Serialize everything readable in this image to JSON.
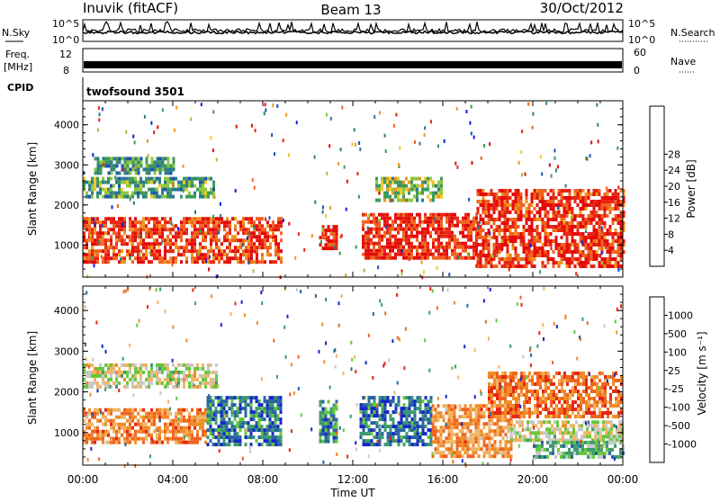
{
  "header": {
    "station": "Inuvik (fitACF)",
    "beam": "Beam 13",
    "date": "30/Oct/2012"
  },
  "strips": {
    "nsky_label": "N.Sky",
    "nsearch_label": "N.Search",
    "freq_label_1": "Freq.",
    "freq_label_2": "[MHz]",
    "nave_label": "Nave",
    "cpid_label": "CPID",
    "cpid_value": "twofsound 3501",
    "nsky_ticks": [
      "10^5",
      "10^0"
    ],
    "nsearch_ticks": [
      "10^5",
      "10^0"
    ],
    "freq_ticks": [
      "12",
      "8"
    ],
    "nave_ticks": [
      "60",
      "0"
    ]
  },
  "chart_data": [
    {
      "type": "heatmap",
      "panel": "power",
      "ylabel": "Slant Range [km]",
      "xlabel": "Time UT",
      "x_ticks": [
        "00:00",
        "04:00",
        "08:00",
        "12:00",
        "16:00",
        "20:00",
        "00:00"
      ],
      "y_ticks": [
        "1000",
        "2000",
        "3000",
        "4000"
      ],
      "ylim": [
        200,
        4600
      ],
      "xlim_hours": [
        0,
        24
      ],
      "colorbar": {
        "label": "Power [dB]",
        "ticks": [
          "4",
          "8",
          "12",
          "16",
          "20",
          "24",
          "28"
        ],
        "colors": [
          "#0a1ee6",
          "#1e50b4",
          "#2e7a8a",
          "#3c9a5a",
          "#8cc83c",
          "#f0c828",
          "#f0961e",
          "#f0641e",
          "#e62814",
          "#e60a0a"
        ]
      },
      "bands": [
        {
          "t0": 0.0,
          "t1": 8.8,
          "r0": 600,
          "r1": 1700,
          "level": 0.82
        },
        {
          "t0": 0.0,
          "t1": 5.8,
          "r0": 2200,
          "r1": 2700,
          "level": 0.35
        },
        {
          "t0": 10.5,
          "t1": 11.3,
          "r0": 900,
          "r1": 1500,
          "level": 0.9
        },
        {
          "t0": 12.4,
          "t1": 17.5,
          "r0": 700,
          "r1": 1800,
          "level": 0.88
        },
        {
          "t0": 17.5,
          "t1": 24.0,
          "r0": 500,
          "r1": 2400,
          "level": 0.85
        },
        {
          "t0": 13.0,
          "t1": 16.0,
          "r0": 2100,
          "r1": 2700,
          "level": 0.45
        },
        {
          "t0": 0.5,
          "t1": 4.0,
          "r0": 2800,
          "r1": 3200,
          "level": 0.3
        }
      ]
    },
    {
      "type": "heatmap",
      "panel": "velocity",
      "ylabel": "Slant Range [km]",
      "xlabel": "Time UT",
      "x_ticks": [
        "00:00",
        "04:00",
        "08:00",
        "12:00",
        "16:00",
        "20:00",
        "00:00"
      ],
      "y_ticks": [
        "1000",
        "2000",
        "3000",
        "4000"
      ],
      "ylim": [
        200,
        4600
      ],
      "xlim_hours": [
        0,
        24
      ],
      "colorbar": {
        "label": "Velocity [m s⁻¹]",
        "ticks": [
          "1000",
          "500",
          "100",
          "25",
          "-25",
          "-100",
          "-500",
          "-1000"
        ],
        "colors": [
          "#1428c8",
          "#2864a0",
          "#3c9a6e",
          "#64c83c",
          "#c8c8c8",
          "#f0b464",
          "#f08c28",
          "#f0641e",
          "#e62814"
        ]
      },
      "bands": [
        {
          "t0": 0.0,
          "t1": 5.5,
          "r0": 800,
          "r1": 1600,
          "level": 0.75
        },
        {
          "t0": 5.5,
          "t1": 8.8,
          "r0": 700,
          "r1": 1900,
          "level": 0.2
        },
        {
          "t0": 0.0,
          "t1": 6.0,
          "r0": 2100,
          "r1": 2700,
          "level": 0.5
        },
        {
          "t0": 10.5,
          "t1": 11.3,
          "r0": 800,
          "r1": 1800,
          "level": 0.25
        },
        {
          "t0": 12.3,
          "t1": 15.5,
          "r0": 700,
          "r1": 1900,
          "level": 0.18
        },
        {
          "t0": 15.5,
          "t1": 19.0,
          "r0": 400,
          "r1": 1700,
          "level": 0.72
        },
        {
          "t0": 18.0,
          "t1": 24.0,
          "r0": 1400,
          "r1": 2500,
          "level": 0.8
        },
        {
          "t0": 19.0,
          "t1": 24.0,
          "r0": 800,
          "r1": 1300,
          "level": 0.5
        },
        {
          "t0": 20.0,
          "t1": 24.0,
          "r0": 400,
          "r1": 800,
          "level": 0.35
        }
      ]
    }
  ]
}
